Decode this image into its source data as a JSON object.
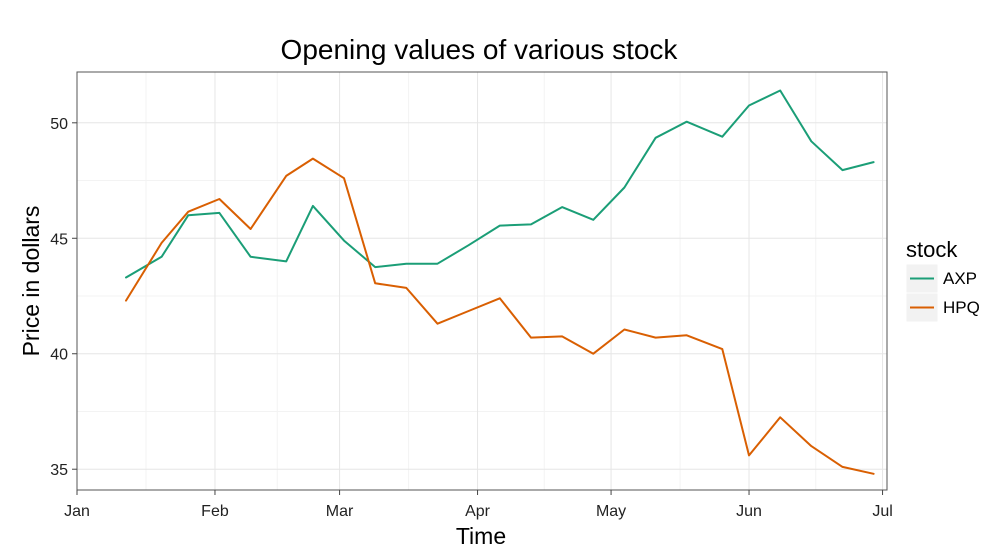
{
  "chart_data": {
    "type": "line",
    "title": "Opening values of various stock",
    "xlabel": "Time",
    "ylabel": "Price in dollars",
    "x_tick_labels": [
      "Jan",
      "Feb",
      "Mar",
      "Apr",
      "May",
      "Jun",
      "Jul"
    ],
    "y_ticks": [
      35,
      40,
      45,
      50
    ],
    "ylim": [
      34.1,
      52.2
    ],
    "xlim": [
      "2015-01-01",
      "2015-07-02"
    ],
    "grid": true,
    "legend": {
      "title": "stock",
      "position": "right"
    },
    "x": [
      "2015-01-12",
      "2015-01-20",
      "2015-01-26",
      "2015-02-02",
      "2015-02-09",
      "2015-02-17",
      "2015-02-23",
      "2015-03-02",
      "2015-03-09",
      "2015-03-16",
      "2015-03-23",
      "2015-03-30",
      "2015-04-06",
      "2015-04-13",
      "2015-04-20",
      "2015-04-27",
      "2015-05-04",
      "2015-05-11",
      "2015-05-18",
      "2015-05-26",
      "2015-06-01",
      "2015-06-08",
      "2015-06-15",
      "2015-06-22",
      "2015-06-29"
    ],
    "series": [
      {
        "name": "AXP",
        "color": "#1b9e77",
        "values": [
          43.3,
          44.2,
          46.0,
          46.1,
          44.2,
          44.0,
          46.4,
          44.9,
          43.75,
          43.9,
          43.9,
          44.7,
          45.55,
          45.6,
          46.35,
          45.8,
          47.2,
          49.35,
          50.05,
          49.4,
          50.75,
          51.4,
          49.2,
          47.95,
          48.3
        ]
      },
      {
        "name": "HPQ",
        "color": "#d95f02",
        "values": [
          42.3,
          44.8,
          46.15,
          46.7,
          45.4,
          47.7,
          48.45,
          47.6,
          43.05,
          42.85,
          41.3,
          41.85,
          42.4,
          40.7,
          40.75,
          40.0,
          41.05,
          40.7,
          40.8,
          40.2,
          35.6,
          37.25,
          36.0,
          35.1,
          34.8
        ]
      }
    ]
  }
}
